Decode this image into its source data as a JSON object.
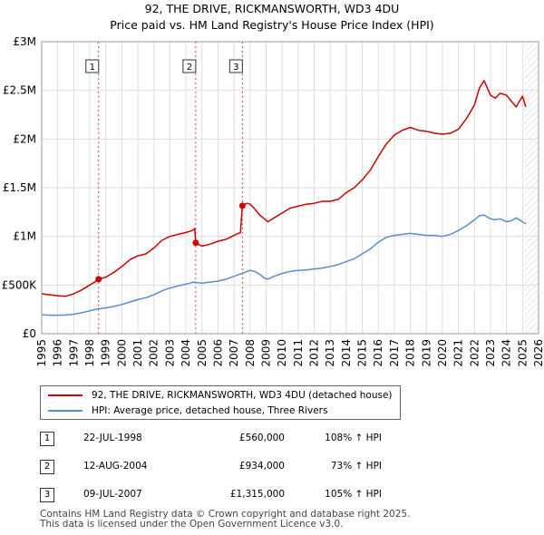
{
  "title_line1": "92, THE DRIVE, RICKMANSWORTH, WD3 4DU",
  "title_line2": "Price paid vs. HM Land Registry's House Price Index (HPI)",
  "colors": {
    "red": "#cc0000",
    "blue": "#5b8ccc",
    "grid": "#dddddd",
    "shade": "#e8eef8"
  },
  "chart_data": {
    "type": "line",
    "title": "92, THE DRIVE, RICKMANSWORTH, WD3 4DU",
    "subtitle": "Price paid vs. HM Land Registry's House Price Index (HPI)",
    "xlim": [
      1995,
      2026
    ],
    "ylim": [
      0,
      3000000
    ],
    "x_ticks": [
      1995,
      1996,
      1997,
      1998,
      1999,
      2000,
      2001,
      2002,
      2003,
      2004,
      2005,
      2006,
      2007,
      2008,
      2009,
      2010,
      2011,
      2012,
      2013,
      2014,
      2015,
      2016,
      2017,
      2018,
      2019,
      2020,
      2021,
      2022,
      2023,
      2024,
      2025,
      2026
    ],
    "y_ticks": [
      {
        "value": 0,
        "label": "£0"
      },
      {
        "value": 500000,
        "label": "£500K"
      },
      {
        "value": 1000000,
        "label": "£1M"
      },
      {
        "value": 1500000,
        "label": "£1.5M"
      },
      {
        "value": 2000000,
        "label": "£2M"
      },
      {
        "value": 2500000,
        "label": "£2.5M"
      },
      {
        "value": 3000000,
        "label": "£3M"
      }
    ],
    "forecast_start": 2025.1,
    "sales": [
      {
        "n": "1",
        "x": 1998.55,
        "y": 560000
      },
      {
        "n": "2",
        "x": 2004.61,
        "y": 934000
      },
      {
        "n": "3",
        "x": 2007.52,
        "y": 1315000
      }
    ],
    "series": [
      {
        "name": "92, THE DRIVE, RICKMANSWORTH, WD3 4DU (detached house)",
        "color": "#cc0000",
        "x": [
          1995,
          1995.5,
          1996,
          1996.5,
          1997,
          1997.5,
          1998,
          1998.3,
          1998.55,
          1999,
          1999.5,
          2000,
          2000.5,
          2001,
          2001.5,
          2002,
          2002.5,
          2003,
          2003.5,
          2004,
          2004.4,
          2004.55,
          2004.61,
          2005,
          2005.5,
          2006,
          2006.5,
          2007,
          2007.4,
          2007.52,
          2007.8,
          2008,
          2008.3,
          2008.6,
          2008.9,
          2009.1,
          2009.5,
          2010,
          2010.5,
          2011,
          2011.5,
          2012,
          2012.5,
          2013,
          2013.5,
          2014,
          2014.5,
          2015,
          2015.5,
          2016,
          2016.5,
          2017,
          2017.5,
          2018,
          2018.5,
          2019,
          2019.5,
          2020,
          2020.5,
          2021,
          2021.5,
          2022,
          2022.3,
          2022.6,
          2023,
          2023.3,
          2023.6,
          2024,
          2024.3,
          2024.6,
          2025,
          2025.2
        ],
        "y": [
          410000,
          400000,
          390000,
          385000,
          410000,
          450000,
          500000,
          530000,
          560000,
          580000,
          630000,
          690000,
          760000,
          800000,
          820000,
          880000,
          960000,
          1000000,
          1020000,
          1040000,
          1060000,
          1080000,
          934000,
          900000,
          920000,
          950000,
          970000,
          1010000,
          1040000,
          1315000,
          1340000,
          1330000,
          1280000,
          1220000,
          1180000,
          1150000,
          1190000,
          1240000,
          1290000,
          1310000,
          1330000,
          1340000,
          1360000,
          1360000,
          1380000,
          1450000,
          1500000,
          1580000,
          1680000,
          1820000,
          1950000,
          2040000,
          2090000,
          2120000,
          2090000,
          2080000,
          2060000,
          2050000,
          2060000,
          2100000,
          2210000,
          2350000,
          2520000,
          2600000,
          2450000,
          2420000,
          2470000,
          2450000,
          2390000,
          2330000,
          2440000,
          2330000
        ]
      },
      {
        "name": "HPI: Average price, detached house, Three Rivers",
        "color": "#5b8ccc",
        "x": [
          1995,
          1995.5,
          1996,
          1996.5,
          1997,
          1997.5,
          1998,
          1998.5,
          1999,
          1999.5,
          2000,
          2000.5,
          2001,
          2001.5,
          2002,
          2002.5,
          2003,
          2003.5,
          2004,
          2004.5,
          2005,
          2005.5,
          2006,
          2006.5,
          2007,
          2007.5,
          2008,
          2008.3,
          2008.6,
          2008.9,
          2009.1,
          2009.5,
          2010,
          2010.5,
          2011,
          2011.5,
          2012,
          2012.5,
          2013,
          2013.5,
          2014,
          2014.5,
          2015,
          2015.5,
          2016,
          2016.5,
          2017,
          2017.5,
          2018,
          2018.5,
          2019,
          2019.5,
          2020,
          2020.5,
          2021,
          2021.5,
          2022,
          2022.3,
          2022.6,
          2023,
          2023.3,
          2023.6,
          2024,
          2024.3,
          2024.6,
          2025,
          2025.2
        ],
        "y": [
          195000,
          190000,
          190000,
          192000,
          200000,
          215000,
          235000,
          255000,
          265000,
          280000,
          300000,
          325000,
          350000,
          370000,
          400000,
          440000,
          470000,
          490000,
          510000,
          530000,
          520000,
          530000,
          540000,
          560000,
          590000,
          620000,
          650000,
          640000,
          610000,
          570000,
          560000,
          590000,
          620000,
          640000,
          650000,
          655000,
          665000,
          675000,
          690000,
          710000,
          740000,
          770000,
          820000,
          870000,
          940000,
          990000,
          1010000,
          1020000,
          1030000,
          1020000,
          1010000,
          1010000,
          1000000,
          1020000,
          1060000,
          1110000,
          1170000,
          1210000,
          1220000,
          1180000,
          1170000,
          1180000,
          1150000,
          1160000,
          1190000,
          1150000,
          1130000
        ]
      }
    ]
  },
  "legend": {
    "red_label": "92, THE DRIVE, RICKMANSWORTH, WD3 4DU (detached house)",
    "blue_label": "HPI: Average price, detached house, Three Rivers"
  },
  "table": [
    {
      "num": "1",
      "date": "22-JUL-1998",
      "price": "£560,000",
      "hpi": "108% ↑ HPI"
    },
    {
      "num": "2",
      "date": "12-AUG-2004",
      "price": "£934,000",
      "hpi": "73% ↑ HPI"
    },
    {
      "num": "3",
      "date": "09-JUL-2007",
      "price": "£1,315,000",
      "hpi": "105% ↑ HPI"
    }
  ],
  "footer_line1": "Contains HM Land Registry data © Crown copyright and database right 2025.",
  "footer_line2": "This data is licensed under the Open Government Licence v3.0."
}
